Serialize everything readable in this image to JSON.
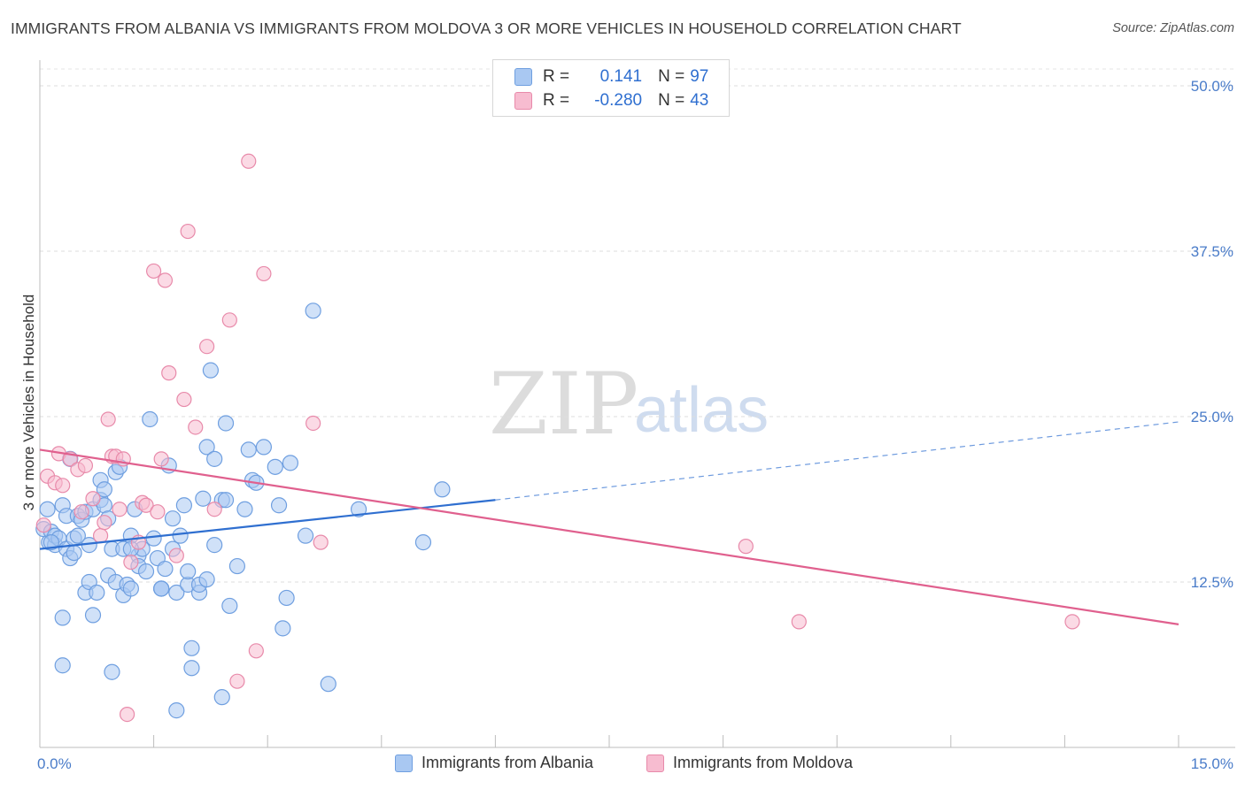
{
  "title": "IMMIGRANTS FROM ALBANIA VS IMMIGRANTS FROM MOLDOVA 3 OR MORE VEHICLES IN HOUSEHOLD CORRELATION CHART",
  "source": "Source: ZipAtlas.com",
  "watermark": {
    "zip": "ZIP",
    "atlas": "atlas"
  },
  "legend": {
    "rows": [
      {
        "r_label": "R =",
        "r_value": "0.141",
        "n_label": "N =",
        "n_value": "97",
        "color": "#a9c8f2",
        "border": "#6f9fe0"
      },
      {
        "r_label": "R =",
        "r_value": "-0.280",
        "n_label": "N =",
        "n_value": "43",
        "color": "#f7bcd0",
        "border": "#e88aaa"
      }
    ]
  },
  "bottom_legend": [
    "Immigrants from Albania",
    "Immigrants from Moldova"
  ],
  "chart_data": {
    "type": "scatter",
    "title": "IMMIGRANTS FROM ALBANIA VS IMMIGRANTS FROM MOLDOVA 3 OR MORE VEHICLES IN HOUSEHOLD CORRELATION CHART",
    "xlabel": "",
    "ylabel": "3 or more Vehicles in Household",
    "xlim": [
      0,
      15
    ],
    "ylim": [
      0,
      50
    ],
    "x_tick_labels": [
      "0.0%",
      "15.0%"
    ],
    "y_ticks": [
      12.5,
      25.0,
      37.5,
      50.0
    ],
    "y_tick_labels": [
      "12.5%",
      "25.0%",
      "37.5%",
      "50.0%"
    ],
    "grid": true,
    "legend_position": "top-center",
    "series": [
      {
        "name": "Immigrants from Albania",
        "color": "#a9c8f2",
        "edge": "#6f9fe0",
        "trend": {
          "x0": 0,
          "y0": 15.0,
          "x1": 6.0,
          "y1": 18.7,
          "dash_to_x": 15,
          "dash_to_y": 24.6,
          "color": "#2f6fd0"
        },
        "points": [
          [
            0.05,
            16.5
          ],
          [
            0.1,
            18.0
          ],
          [
            0.12,
            15.5
          ],
          [
            0.15,
            16.3
          ],
          [
            0.2,
            15.3
          ],
          [
            0.2,
            16.0
          ],
          [
            0.25,
            15.8
          ],
          [
            0.3,
            18.3
          ],
          [
            0.3,
            9.8
          ],
          [
            0.3,
            6.2
          ],
          [
            0.35,
            17.5
          ],
          [
            0.35,
            15.0
          ],
          [
            0.4,
            21.8
          ],
          [
            0.4,
            14.3
          ],
          [
            0.45,
            14.7
          ],
          [
            0.45,
            15.8
          ],
          [
            0.5,
            16.0
          ],
          [
            0.5,
            17.5
          ],
          [
            0.55,
            17.2
          ],
          [
            0.6,
            17.8
          ],
          [
            0.6,
            11.7
          ],
          [
            0.65,
            12.5
          ],
          [
            0.65,
            15.3
          ],
          [
            0.7,
            10.0
          ],
          [
            0.7,
            18.0
          ],
          [
            0.75,
            11.7
          ],
          [
            0.8,
            18.7
          ],
          [
            0.8,
            20.2
          ],
          [
            0.85,
            19.5
          ],
          [
            0.85,
            18.3
          ],
          [
            0.9,
            17.3
          ],
          [
            0.9,
            13.0
          ],
          [
            0.95,
            15.0
          ],
          [
            0.95,
            5.7
          ],
          [
            1.0,
            20.8
          ],
          [
            1.0,
            12.5
          ],
          [
            1.05,
            21.2
          ],
          [
            1.1,
            11.5
          ],
          [
            1.1,
            15.0
          ],
          [
            1.15,
            12.3
          ],
          [
            1.2,
            12.0
          ],
          [
            1.2,
            16.0
          ],
          [
            1.25,
            18.0
          ],
          [
            1.3,
            14.5
          ],
          [
            1.3,
            13.7
          ],
          [
            1.35,
            15.0
          ],
          [
            1.4,
            13.3
          ],
          [
            1.45,
            24.8
          ],
          [
            1.5,
            15.8
          ],
          [
            1.55,
            14.3
          ],
          [
            1.6,
            12.0
          ],
          [
            1.6,
            12.0
          ],
          [
            1.65,
            13.5
          ],
          [
            1.7,
            21.3
          ],
          [
            1.75,
            17.3
          ],
          [
            1.75,
            15.0
          ],
          [
            1.8,
            11.7
          ],
          [
            1.8,
            2.8
          ],
          [
            1.85,
            16.0
          ],
          [
            1.9,
            18.3
          ],
          [
            1.95,
            12.3
          ],
          [
            1.95,
            13.3
          ],
          [
            2.0,
            7.5
          ],
          [
            2.0,
            6.0
          ],
          [
            2.1,
            11.7
          ],
          [
            2.1,
            12.3
          ],
          [
            2.15,
            18.8
          ],
          [
            2.2,
            22.7
          ],
          [
            2.2,
            12.7
          ],
          [
            2.25,
            28.5
          ],
          [
            2.3,
            21.8
          ],
          [
            2.3,
            15.3
          ],
          [
            2.4,
            18.7
          ],
          [
            2.4,
            3.8
          ],
          [
            2.45,
            24.5
          ],
          [
            2.45,
            18.7
          ],
          [
            2.5,
            10.7
          ],
          [
            2.6,
            13.7
          ],
          [
            2.7,
            18.0
          ],
          [
            2.75,
            22.5
          ],
          [
            2.8,
            20.2
          ],
          [
            2.85,
            20.0
          ],
          [
            2.95,
            22.7
          ],
          [
            3.1,
            21.2
          ],
          [
            3.15,
            18.3
          ],
          [
            3.2,
            9.0
          ],
          [
            3.25,
            11.3
          ],
          [
            3.3,
            21.5
          ],
          [
            3.5,
            16.0
          ],
          [
            3.6,
            33.0
          ],
          [
            3.8,
            4.8
          ],
          [
            4.2,
            18.0
          ],
          [
            5.05,
            15.5
          ],
          [
            5.3,
            19.5
          ],
          [
            1.6,
            12.0
          ],
          [
            0.15,
            15.5
          ],
          [
            1.2,
            15.0
          ]
        ]
      },
      {
        "name": "Immigrants from Moldova",
        "color": "#f7bcd0",
        "edge": "#e88aaa",
        "trend": {
          "x0": 0,
          "y0": 22.5,
          "x1": 15,
          "y1": 9.3,
          "color": "#e0608e"
        },
        "points": [
          [
            0.05,
            16.8
          ],
          [
            0.1,
            20.5
          ],
          [
            0.2,
            20.0
          ],
          [
            0.25,
            22.2
          ],
          [
            0.3,
            19.8
          ],
          [
            0.4,
            21.8
          ],
          [
            0.5,
            21.0
          ],
          [
            0.55,
            17.8
          ],
          [
            0.6,
            21.3
          ],
          [
            0.7,
            18.8
          ],
          [
            0.8,
            16.0
          ],
          [
            0.85,
            17.0
          ],
          [
            0.9,
            24.8
          ],
          [
            0.95,
            22.0
          ],
          [
            1.0,
            22.0
          ],
          [
            1.05,
            18.0
          ],
          [
            1.1,
            21.8
          ],
          [
            1.15,
            2.5
          ],
          [
            1.2,
            14.0
          ],
          [
            1.3,
            15.5
          ],
          [
            1.35,
            18.5
          ],
          [
            1.4,
            18.3
          ],
          [
            1.5,
            36.0
          ],
          [
            1.55,
            17.8
          ],
          [
            1.6,
            21.8
          ],
          [
            1.65,
            35.3
          ],
          [
            1.7,
            28.3
          ],
          [
            1.8,
            14.5
          ],
          [
            1.9,
            26.3
          ],
          [
            1.95,
            39.0
          ],
          [
            2.05,
            24.2
          ],
          [
            2.2,
            30.3
          ],
          [
            2.3,
            18.0
          ],
          [
            2.5,
            32.3
          ],
          [
            2.6,
            5.0
          ],
          [
            2.75,
            44.3
          ],
          [
            2.85,
            7.3
          ],
          [
            2.95,
            35.8
          ],
          [
            3.6,
            24.5
          ],
          [
            3.7,
            15.5
          ],
          [
            9.3,
            15.2
          ],
          [
            10.0,
            9.5
          ],
          [
            13.6,
            9.5
          ]
        ]
      }
    ]
  }
}
